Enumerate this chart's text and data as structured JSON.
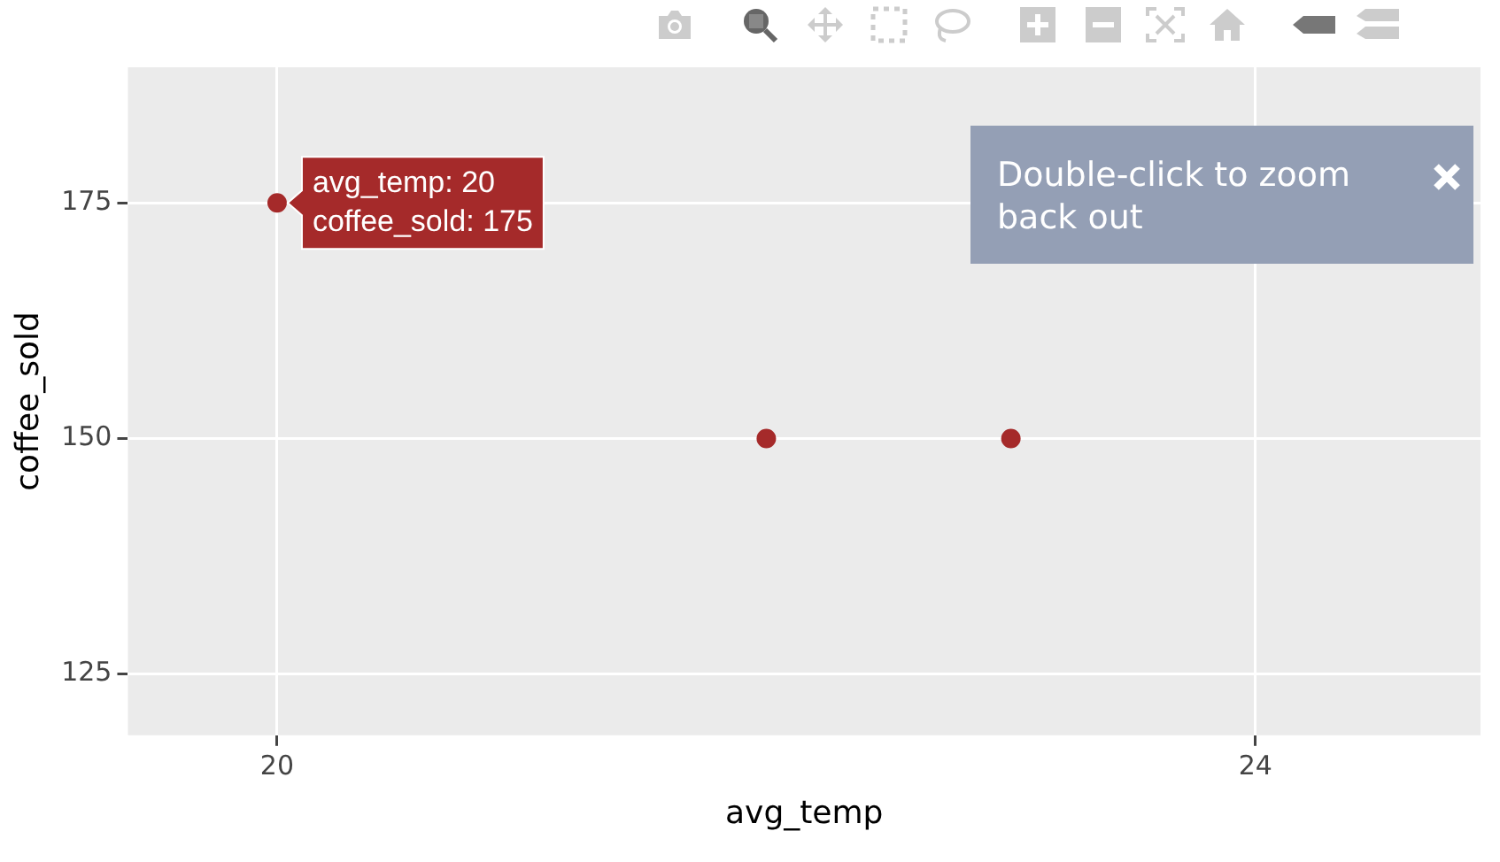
{
  "chart_data": {
    "type": "scatter",
    "xlabel": "avg_temp",
    "ylabel": "coffee_sold",
    "x": [
      20,
      22,
      23
    ],
    "series": [
      {
        "color": "#a52a2a",
        "values": [
          175,
          150,
          150
        ]
      }
    ],
    "xlim": [
      19.39,
      24.92
    ],
    "xticks": [
      20,
      24
    ],
    "ylim": [
      118.5,
      189.4
    ],
    "yticks": [
      125,
      150,
      175
    ],
    "grid": true,
    "legend": false,
    "marker": "circle",
    "annotations": [
      {
        "text": "avg_temp: 20\ncoffee_sold: 175",
        "x": 20,
        "y": 175
      },
      "Double-click to zoom back out"
    ]
  }
}
